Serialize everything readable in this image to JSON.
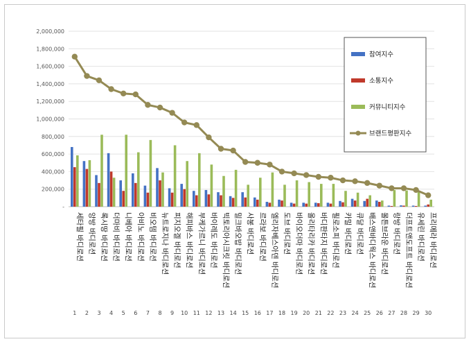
{
  "chart_data": {
    "type": "bar",
    "categories": [
      "세타필 바디로션",
      "앙방 바디로션",
      "록시땅 바디로션",
      "더마비 바디로션",
      "니베아 바디로션",
      "아비노 바디로션",
      "비오템 바디로션",
      "뉴트로지나 바디로션",
      "피지오겔 바디로션",
      "해피바스 바디로션",
      "부케가르니 바디로션",
      "바이레도 바디로션",
      "빅토리아시크릿 바디로션",
      "밀크바오밥 바디로션",
      "사봉 바디로션",
      "르라보 바디로션",
      "엘리자베스아덴 바디로션",
      "도브 바디로션",
      "바이오더마 바디로션",
      "올리타리카 바디로션",
      "바디판타지 바디로션",
      "필로소피 바디로션",
      "카밀 바디로션",
      "큐달 바디로션",
      "배스앤바디웍스 바디로션",
      "몰튼브라운 바디로션",
      "랑방 바디로션",
      "더프트앤도프트 바디로션",
      "유세린 바디로션",
      "프리메라 바디로션"
    ],
    "ranks": [
      "1",
      "2",
      "3",
      "4",
      "5",
      "6",
      "7",
      "8",
      "9",
      "10",
      "11",
      "12",
      "13",
      "14",
      "15",
      "16",
      "17",
      "18",
      "19",
      "20",
      "21",
      "22",
      "23",
      "24",
      "25",
      "26",
      "27",
      "28",
      "29",
      "30"
    ],
    "series": [
      {
        "name": "참여지수",
        "color": "#4472c4",
        "values": [
          680000,
          520000,
          360000,
          610000,
          300000,
          380000,
          240000,
          440000,
          210000,
          260000,
          180000,
          190000,
          165000,
          120000,
          165000,
          105000,
          55000,
          80000,
          45000,
          45000,
          45000,
          45000,
          65000,
          90000,
          65000,
          70000,
          12000,
          15000,
          12000,
          12000
        ]
      },
      {
        "name": "소통지수",
        "color": "#c0392b",
        "values": [
          450000,
          430000,
          270000,
          400000,
          180000,
          270000,
          160000,
          300000,
          160000,
          200000,
          130000,
          140000,
          130000,
          100000,
          105000,
          80000,
          45000,
          70000,
          35000,
          35000,
          40000,
          35000,
          50000,
          70000,
          90000,
          55000,
          8000,
          12000,
          8000,
          25000
        ]
      },
      {
        "name": "커뮤니티지수",
        "color": "#9bbb59",
        "values": [
          585000,
          530000,
          820000,
          330000,
          820000,
          620000,
          760000,
          390000,
          700000,
          520000,
          610000,
          480000,
          350000,
          420000,
          250000,
          330000,
          390000,
          250000,
          300000,
          280000,
          260000,
          260000,
          180000,
          160000,
          130000,
          70000,
          190000,
          185000,
          175000,
          80000
        ]
      },
      {
        "name": "브랜드평판지수",
        "color": "#948a54",
        "values": [
          1710000,
          1490000,
          1440000,
          1340000,
          1290000,
          1280000,
          1160000,
          1130000,
          1070000,
          960000,
          930000,
          790000,
          660000,
          640000,
          510000,
          500000,
          480000,
          400000,
          380000,
          360000,
          340000,
          330000,
          300000,
          290000,
          270000,
          240000,
          210000,
          210000,
          190000,
          130000
        ]
      }
    ],
    "yticks": [
      "-",
      "200,000",
      "400,000",
      "600,000",
      "800,000",
      "1,000,000",
      "1,200,000",
      "1,400,000",
      "1,600,000",
      "1,800,000",
      "2,000,000"
    ],
    "ylim": [
      0,
      2000000
    ],
    "title": "",
    "xlabel": "",
    "ylabel": "",
    "legend_position": "right",
    "grid": true
  }
}
